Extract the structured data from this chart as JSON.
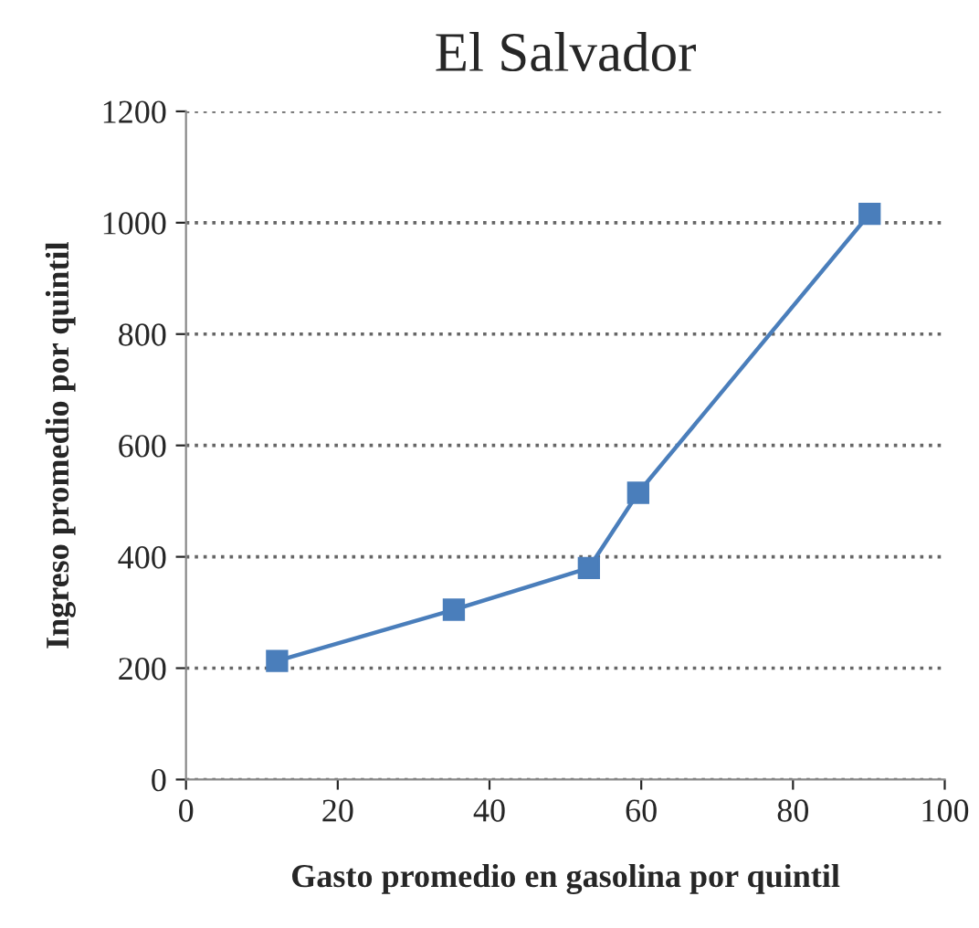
{
  "chart_data": {
    "type": "line",
    "title": "El Salvador",
    "xlabel": "Gasto promedio en gasolina por quintil",
    "ylabel": "Ingreso promedio por quintil",
    "series": [
      {
        "color": "#4a7ebb",
        "x": [
          12,
          35.3,
          53.1,
          59.6,
          90.1
        ],
        "values": [
          213,
          305,
          380,
          515,
          1016
        ]
      }
    ],
    "xlim": [
      0,
      100
    ],
    "xticks": [
      0,
      20,
      40,
      60,
      80,
      100
    ],
    "ylim": [
      0,
      1200
    ],
    "yticks": [
      0,
      200,
      400,
      600,
      800,
      1000,
      1200
    ],
    "grid": "y",
    "marker": "square",
    "line_style": "solid",
    "legend": false
  }
}
